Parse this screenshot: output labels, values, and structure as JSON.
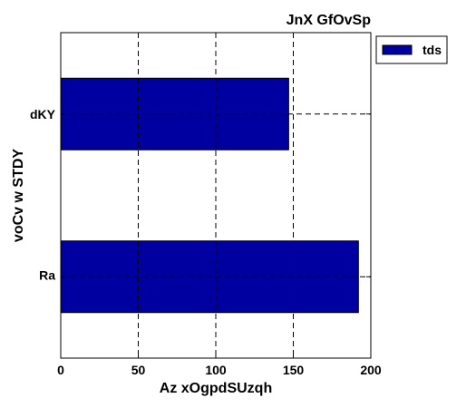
{
  "chart_data": {
    "type": "bar",
    "orientation": "horizontal",
    "title": "JnX GfOvSp",
    "xlabel": "Az xOgpdSUzqh",
    "ylabel": "voCv w STDY",
    "categories": [
      "Ra",
      "dKY"
    ],
    "series": [
      {
        "name": "tds",
        "values": [
          192,
          147
        ],
        "color": "#0000a0"
      }
    ],
    "xlim": [
      0,
      200
    ],
    "xticks": [
      0,
      50,
      100,
      150,
      200
    ],
    "grid": true,
    "legend_position": "upper-right outside"
  }
}
